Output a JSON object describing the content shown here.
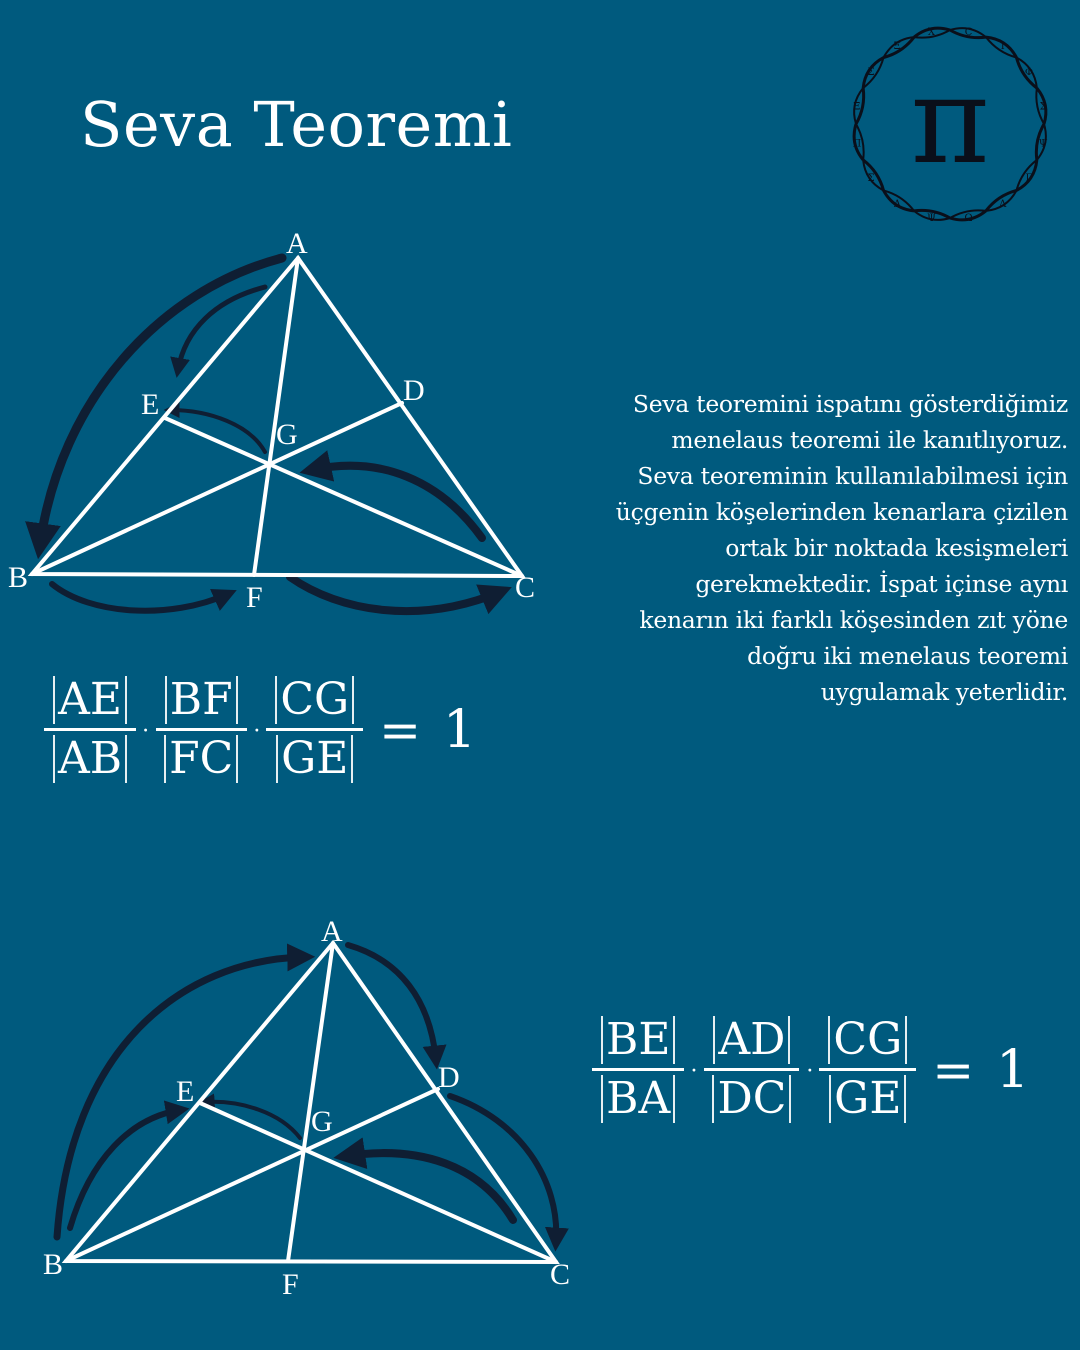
{
  "title": "Seva Teoremi",
  "logo": {
    "symbol": "π",
    "ring_letters": [
      "Ç",
      "I",
      "Φ",
      "Σ",
      "Ψ",
      "Γ",
      "Λ",
      "Ω",
      "Ψ",
      "Δ",
      "Σ",
      "Π",
      "Ξ",
      "Σ",
      "Ξ",
      "Χ"
    ]
  },
  "description": [
    "Seva teoremini ispatını gösterdiğimiz",
    "menelaus teoremi ile kanıtlıyoruz.",
    "Seva teoreminin kullanılabilmesi için",
    "üçgenin köşelerinden kenarlara çizilen",
    "ortak bir noktada kesişmeleri",
    "gerekmektedir. İspat içinse aynı",
    "kenarın iki farklı köşesinden zıt yöne",
    "doğru iki menelaus teoremi",
    "uygulamak yeterlidir."
  ],
  "diagram1": {
    "labels": {
      "A": "A",
      "B": "B",
      "C": "C",
      "D": "D",
      "E": "E",
      "F": "F",
      "G": "G"
    }
  },
  "diagram2": {
    "labels": {
      "A": "A",
      "B": "B",
      "C": "C",
      "D": "D",
      "E": "E",
      "F": "F",
      "G": "G"
    }
  },
  "formula1": {
    "fractions": [
      {
        "num": "AE",
        "den": "AB"
      },
      {
        "num": "BF",
        "den": "FC"
      },
      {
        "num": "CG",
        "den": "GE"
      }
    ],
    "dot": "·",
    "equals": "=",
    "result": "1"
  },
  "formula2": {
    "fractions": [
      {
        "num": "BE",
        "den": "BA"
      },
      {
        "num": "AD",
        "den": "DC"
      },
      {
        "num": "CG",
        "den": "GE"
      }
    ],
    "dot": "·",
    "equals": "=",
    "result": "1"
  },
  "colors": {
    "background": "#005a7e",
    "lines": "#ffffff",
    "arrows": "#0f1e33"
  }
}
